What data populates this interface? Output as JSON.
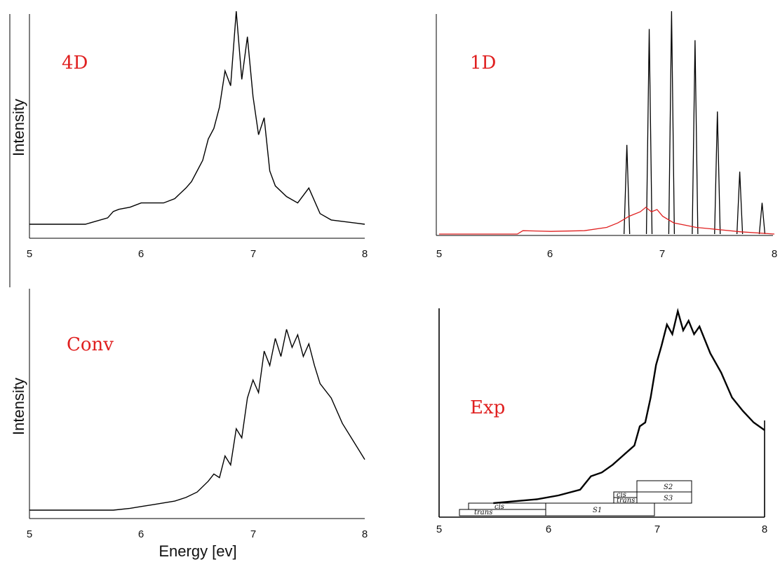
{
  "figure": {
    "ylabel_top": "Intensity",
    "ylabel_bottom": "Intensity",
    "xlabel": "Energy [ev]"
  },
  "chart_data": [
    {
      "type": "line",
      "label": "4D",
      "xlim": [
        5,
        8
      ],
      "xticks": [
        "5",
        "6",
        "7",
        "8"
      ],
      "ylabel": "Intensity",
      "series": [
        {
          "color": "#000000",
          "points": [
            [
              5.0,
              0.0
            ],
            [
              5.5,
              0.0
            ],
            [
              5.7,
              0.03
            ],
            [
              5.75,
              0.06
            ],
            [
              5.8,
              0.07
            ],
            [
              5.9,
              0.08
            ],
            [
              6.0,
              0.1
            ],
            [
              6.1,
              0.1
            ],
            [
              6.2,
              0.1
            ],
            [
              6.3,
              0.12
            ],
            [
              6.4,
              0.17
            ],
            [
              6.45,
              0.2
            ],
            [
              6.5,
              0.25
            ],
            [
              6.55,
              0.3
            ],
            [
              6.6,
              0.4
            ],
            [
              6.65,
              0.45
            ],
            [
              6.7,
              0.55
            ],
            [
              6.75,
              0.72
            ],
            [
              6.8,
              0.65
            ],
            [
              6.85,
              1.0
            ],
            [
              6.9,
              0.68
            ],
            [
              6.95,
              0.88
            ],
            [
              7.0,
              0.6
            ],
            [
              7.05,
              0.42
            ],
            [
              7.1,
              0.5
            ],
            [
              7.15,
              0.25
            ],
            [
              7.2,
              0.18
            ],
            [
              7.3,
              0.13
            ],
            [
              7.4,
              0.1
            ],
            [
              7.5,
              0.17
            ],
            [
              7.6,
              0.05
            ],
            [
              7.7,
              0.02
            ],
            [
              8.0,
              0.0
            ]
          ]
        }
      ]
    },
    {
      "type": "line",
      "label": "1D",
      "xlim": [
        5,
        8
      ],
      "xticks": [
        "5",
        "6",
        "7",
        "8"
      ],
      "series": [
        {
          "color": "#000000",
          "style": "stick",
          "points": [
            [
              6.68,
              0.4
            ],
            [
              6.88,
              0.92
            ],
            [
              7.08,
              1.0
            ],
            [
              7.29,
              0.87
            ],
            [
              7.49,
              0.55
            ],
            [
              7.69,
              0.28
            ],
            [
              7.89,
              0.14
            ]
          ]
        },
        {
          "color": "#e02020",
          "points": [
            [
              5.0,
              0.0
            ],
            [
              5.7,
              0.0
            ],
            [
              5.75,
              0.015
            ],
            [
              6.0,
              0.012
            ],
            [
              6.3,
              0.015
            ],
            [
              6.5,
              0.03
            ],
            [
              6.6,
              0.05
            ],
            [
              6.7,
              0.08
            ],
            [
              6.8,
              0.1
            ],
            [
              6.85,
              0.12
            ],
            [
              6.9,
              0.1
            ],
            [
              6.95,
              0.11
            ],
            [
              7.0,
              0.08
            ],
            [
              7.1,
              0.05
            ],
            [
              7.2,
              0.04
            ],
            [
              7.3,
              0.03
            ],
            [
              7.5,
              0.02
            ],
            [
              7.7,
              0.01
            ],
            [
              8.0,
              0.0
            ]
          ]
        }
      ]
    },
    {
      "type": "line",
      "label": "Conv",
      "xlim": [
        5,
        8
      ],
      "xticks": [
        "5",
        "6",
        "7",
        "8"
      ],
      "ylabel": "Intensity",
      "xlabel": "Energy [ev]",
      "series": [
        {
          "color": "#000000",
          "points": [
            [
              5.0,
              0.0
            ],
            [
              5.75,
              0.0
            ],
            [
              5.9,
              0.01
            ],
            [
              6.0,
              0.02
            ],
            [
              6.1,
              0.03
            ],
            [
              6.2,
              0.04
            ],
            [
              6.3,
              0.05
            ],
            [
              6.4,
              0.07
            ],
            [
              6.5,
              0.1
            ],
            [
              6.6,
              0.16
            ],
            [
              6.65,
              0.2
            ],
            [
              6.7,
              0.18
            ],
            [
              6.75,
              0.3
            ],
            [
              6.8,
              0.25
            ],
            [
              6.85,
              0.45
            ],
            [
              6.9,
              0.4
            ],
            [
              6.95,
              0.62
            ],
            [
              7.0,
              0.72
            ],
            [
              7.05,
              0.65
            ],
            [
              7.1,
              0.88
            ],
            [
              7.15,
              0.8
            ],
            [
              7.2,
              0.95
            ],
            [
              7.25,
              0.85
            ],
            [
              7.3,
              1.0
            ],
            [
              7.35,
              0.9
            ],
            [
              7.4,
              0.97
            ],
            [
              7.45,
              0.85
            ],
            [
              7.5,
              0.92
            ],
            [
              7.55,
              0.8
            ],
            [
              7.6,
              0.7
            ],
            [
              7.7,
              0.62
            ],
            [
              7.8,
              0.48
            ],
            [
              7.9,
              0.38
            ],
            [
              8.0,
              0.28
            ]
          ]
        }
      ]
    },
    {
      "type": "line",
      "label": "Exp",
      "xlim": [
        5,
        8
      ],
      "xticks": [
        "5",
        "6",
        "7",
        "8"
      ],
      "annotations": [
        "S2",
        "S3",
        "cis",
        "trans",
        "cis",
        "S1",
        "trans"
      ],
      "series": [
        {
          "color": "#000000",
          "points": [
            [
              5.5,
              0.0
            ],
            [
              5.9,
              0.02
            ],
            [
              6.1,
              0.04
            ],
            [
              6.3,
              0.07
            ],
            [
              6.4,
              0.14
            ],
            [
              6.5,
              0.16
            ],
            [
              6.6,
              0.2
            ],
            [
              6.7,
              0.25
            ],
            [
              6.8,
              0.3
            ],
            [
              6.85,
              0.4
            ],
            [
              6.9,
              0.42
            ],
            [
              6.95,
              0.55
            ],
            [
              7.0,
              0.72
            ],
            [
              7.05,
              0.82
            ],
            [
              7.1,
              0.93
            ],
            [
              7.15,
              0.88
            ],
            [
              7.2,
              1.0
            ],
            [
              7.25,
              0.9
            ],
            [
              7.3,
              0.95
            ],
            [
              7.35,
              0.88
            ],
            [
              7.4,
              0.92
            ],
            [
              7.5,
              0.78
            ],
            [
              7.6,
              0.68
            ],
            [
              7.7,
              0.55
            ],
            [
              7.8,
              0.48
            ],
            [
              7.9,
              0.42
            ],
            [
              8.0,
              0.38
            ]
          ]
        }
      ]
    }
  ]
}
